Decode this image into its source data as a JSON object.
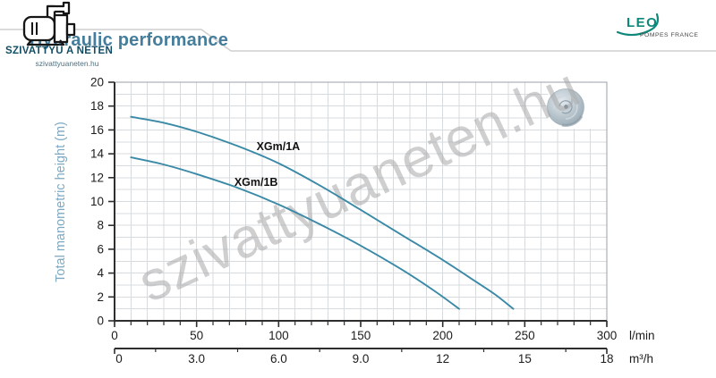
{
  "header": {
    "title": "Hydraulic performance"
  },
  "branding": {
    "site_name": "SZIVATTYÚ A NETEN",
    "site_url": "szivattyuaneten.hu",
    "partner_name": "LEO",
    "partner_tagline": "POMPES FRANCE"
  },
  "watermark": "szivattyuaneten.hu",
  "chart_data": {
    "type": "line",
    "title": "",
    "ylabel": "Total manometric height (m)",
    "grid": true,
    "curve_color": "#3a89a6",
    "y_axis": {
      "range": [
        0,
        20
      ],
      "major_ticks": [
        0,
        2,
        4,
        6,
        8,
        10,
        12,
        14,
        16,
        18,
        20
      ],
      "minor_step": 1
    },
    "x_axis_primary": {
      "unit": "l/min",
      "range": [
        0,
        300
      ],
      "major_ticks": [
        0,
        50,
        100,
        150,
        200,
        250,
        300
      ],
      "minor_step": 10
    },
    "x_axis_secondary": {
      "unit": "m³/h",
      "range": [
        0,
        18
      ],
      "tick_labels": [
        "0",
        "3.0",
        "6.0",
        "9.0",
        "12",
        "15",
        "18"
      ],
      "tick_values": [
        0,
        3,
        6,
        9,
        12,
        15,
        18
      ],
      "minor_tick_values": [
        1.5,
        4.5,
        7.5,
        10.5,
        13.5,
        16.5
      ]
    },
    "series": [
      {
        "name": "XGm/1A",
        "color": "#3a89a6",
        "label_at": [
          86.5,
          14.3
        ],
        "points": [
          [
            10,
            17.1
          ],
          [
            30,
            16.6
          ],
          [
            50,
            15.85
          ],
          [
            75,
            14.65
          ],
          [
            100,
            13.2
          ],
          [
            125,
            11.35
          ],
          [
            150,
            9.3
          ],
          [
            175,
            7.2
          ],
          [
            200,
            5.1
          ],
          [
            220,
            3.3
          ],
          [
            232,
            2.2
          ],
          [
            243,
            1.0
          ]
        ]
      },
      {
        "name": "XGm/1B",
        "color": "#3a89a6",
        "label_at": [
          73,
          11.3
        ],
        "points": [
          [
            10,
            13.7
          ],
          [
            30,
            13.1
          ],
          [
            50,
            12.3
          ],
          [
            75,
            11.15
          ],
          [
            100,
            9.75
          ],
          [
            125,
            8.1
          ],
          [
            150,
            6.3
          ],
          [
            175,
            4.3
          ],
          [
            195,
            2.5
          ],
          [
            210,
            1.0
          ]
        ]
      }
    ]
  }
}
